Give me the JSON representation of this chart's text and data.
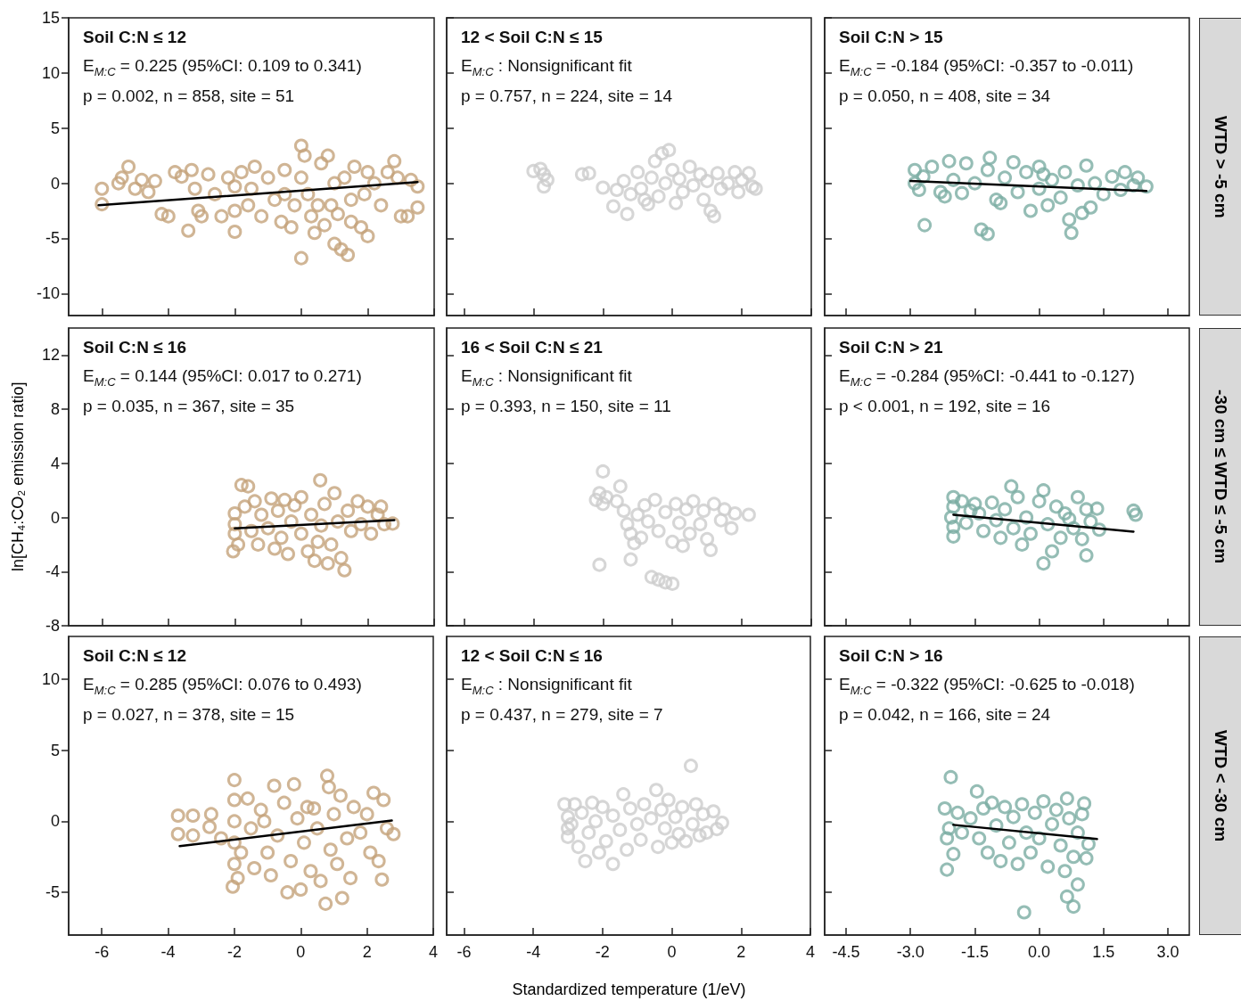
{
  "chart_data": [
    {
      "type": "scatter",
      "title": "Soil C:N ≤ 12",
      "annotations": [
        "E$_{M:C}$ = 0.225 (95%CI: 0.109 to 0.341)",
        "p = 0.002, n = 858, site = 51"
      ],
      "marker": "circle",
      "tick_labels": "y",
      "xlim": [
        -7,
        4
      ],
      "xticks": [
        -6,
        -4,
        -2,
        0,
        2,
        4
      ],
      "ylim": [
        -12,
        15
      ],
      "yticks": [
        -10,
        -5,
        0,
        5,
        10,
        15
      ],
      "series": [
        {
          "type": "scatter",
          "color": "#c4a27a",
          "x": [
            -6.0,
            -6.0,
            -5.5,
            -5.4,
            -5.2,
            -5.0,
            -4.8,
            -4.6,
            -4.4,
            -4.2,
            -4.0,
            -3.8,
            -3.6,
            -3.4,
            -3.3,
            -3.2,
            -3.1,
            -3.0,
            -2.8,
            -2.6,
            -2.4,
            -2.2,
            -2.0,
            -2.0,
            -2.0,
            -1.8,
            -1.6,
            -1.4,
            -1.2,
            -1.0,
            -0.8,
            -0.6,
            -0.5,
            -0.3,
            -0.2,
            0.0,
            0.0,
            0.0,
            0.1,
            0.2,
            0.3,
            0.4,
            0.6,
            0.8,
            0.9,
            1.0,
            1.2,
            1.4,
            1.3,
            1.5,
            1.6,
            1.8,
            1.9,
            2.0,
            2.2,
            2.4,
            2.6,
            2.8,
            2.9,
            3.0,
            3.2,
            3.3,
            3.5,
            3.5,
            -0.5,
            0.5,
            1.0,
            1.5,
            2.0,
            -1.5,
            0.7,
            1.1
          ],
          "values": [
            -0.5,
            -1.9,
            0.0,
            0.5,
            1.5,
            -0.5,
            0.3,
            -0.8,
            0.2,
            -2.8,
            -3.0,
            1.0,
            0.6,
            -4.3,
            1.2,
            -0.5,
            -2.5,
            -3.0,
            0.8,
            -1.0,
            -3.0,
            0.5,
            -0.3,
            -2.5,
            -4.4,
            1.0,
            -2.0,
            1.5,
            -3.0,
            0.5,
            -1.5,
            -3.5,
            1.2,
            -4.0,
            -2.0,
            -6.8,
            0.5,
            3.4,
            2.5,
            -1.0,
            -3.0,
            -4.5,
            1.8,
            2.5,
            -2.0,
            -5.5,
            -6.0,
            -6.5,
            0.5,
            -3.5,
            1.5,
            -4.0,
            -1.0,
            -4.8,
            0.0,
            -2.0,
            1.0,
            2.0,
            0.5,
            -3.0,
            -3.0,
            0.3,
            -0.3,
            -2.2,
            -1.0,
            -2.0,
            0.0,
            -1.5,
            1.0,
            -0.5,
            -3.8,
            -2.8
          ]
        },
        {
          "type": "line",
          "marker": "none",
          "color": "#000000",
          "x": [
            -6.1,
            3.5
          ],
          "values": [
            -2.0,
            0.1
          ]
        }
      ]
    },
    {
      "type": "scatter",
      "title": "12 < Soil C:N ≤ 15",
      "annotations": [
        "E$_{M:C}$ : Nonsignificant fit",
        "p = 0.757, n = 224, site = 14"
      ],
      "marker": "circle",
      "tick_labels": false,
      "xlim": [
        -6.5,
        4
      ],
      "xticks": [
        -6,
        -4,
        -2,
        0,
        2,
        4
      ],
      "ylim": [
        -12,
        15
      ],
      "yticks": [
        -10,
        -5,
        0,
        5,
        10,
        15
      ],
      "series": [
        {
          "type": "scatter",
          "color": "#cccccc",
          "x": [
            -4.0,
            -3.8,
            -3.7,
            -3.6,
            -3.7,
            -2.6,
            -2.4,
            -2.0,
            -1.7,
            -1.3,
            -1.4,
            -1.2,
            -1.0,
            -0.9,
            -0.8,
            -0.6,
            -0.5,
            -0.4,
            -0.3,
            -0.2,
            -0.1,
            0.0,
            0.1,
            0.2,
            0.3,
            0.5,
            0.6,
            0.8,
            0.9,
            1.0,
            1.1,
            1.2,
            1.3,
            1.4,
            1.6,
            1.8,
            1.9,
            2.0,
            2.2,
            2.3,
            2.4,
            -1.6,
            -0.7
          ],
          "values": [
            1.1,
            1.3,
            0.8,
            0.3,
            -0.3,
            0.8,
            0.9,
            -0.4,
            -2.1,
            -2.8,
            0.2,
            -1.0,
            1.0,
            -0.5,
            -1.5,
            0.5,
            2.0,
            -1.2,
            2.7,
            0.0,
            3.0,
            1.2,
            -1.8,
            0.4,
            -0.8,
            1.5,
            -0.2,
            0.8,
            -1.5,
            0.2,
            -2.5,
            -3.0,
            0.9,
            -0.5,
            0.0,
            1.0,
            -0.8,
            0.3,
            0.9,
            -0.3,
            -0.5,
            -0.6,
            -1.9
          ]
        }
      ]
    },
    {
      "type": "scatter",
      "title": "Soil C:N > 15",
      "annotations": [
        "E$_{M:C}$ = -0.184 (95%CI: -0.357 to -0.011)",
        "p = 0.050, n = 408, site = 34"
      ],
      "y2label": "WTD > -5 cm",
      "marker": "circle",
      "tick_labels": false,
      "xlim": [
        -5,
        3.5
      ],
      "xticks": [
        -4.5,
        -3,
        -1.5,
        0,
        1.5,
        3
      ],
      "ylim": [
        -12,
        15
      ],
      "yticks": [
        -10,
        -5,
        0,
        5,
        10,
        15
      ],
      "series": [
        {
          "type": "scatter",
          "color": "#7aaca2",
          "x": [
            -2.9,
            -2.9,
            -2.8,
            -2.7,
            -2.67,
            -2.5,
            -2.3,
            -2.1,
            -2.0,
            -1.8,
            -1.7,
            -1.5,
            -1.35,
            -1.2,
            -1.2,
            -1.15,
            -1.0,
            -0.8,
            -0.6,
            -0.5,
            -0.3,
            -0.2,
            0.0,
            0.0,
            0.2,
            0.3,
            0.5,
            0.6,
            0.7,
            0.75,
            0.9,
            1.0,
            1.1,
            1.2,
            1.3,
            1.5,
            1.7,
            1.9,
            2.0,
            2.2,
            2.3,
            2.5,
            -2.2,
            -0.9,
            0.1
          ],
          "values": [
            1.2,
            0.0,
            -0.6,
            0.6,
            -3.8,
            1.5,
            -0.8,
            2.0,
            0.3,
            -0.9,
            1.8,
            0.0,
            -4.2,
            -4.6,
            1.2,
            2.3,
            -1.5,
            0.5,
            1.9,
            -0.8,
            1.0,
            -2.5,
            -0.5,
            1.5,
            -2.0,
            0.3,
            -1.3,
            1.0,
            -3.3,
            -4.5,
            -0.2,
            -2.7,
            1.6,
            -2.2,
            0.0,
            -1.0,
            0.6,
            -0.6,
            1.0,
            -0.2,
            0.5,
            -0.3,
            -1.2,
            -1.8,
            0.8
          ]
        },
        {
          "type": "line",
          "marker": "none",
          "color": "#000000",
          "x": [
            -3.0,
            2.5
          ],
          "values": [
            0.2,
            -0.7
          ]
        }
      ]
    },
    {
      "type": "scatter",
      "title": "Soil C:N ≤ 16",
      "annotations": [
        "E$_{M:C}$ = 0.144 (95%CI: 0.017 to 0.271)",
        "p = 0.035, n = 367, site = 35"
      ],
      "ylabel": "ln[CH₄:CO₂ emission ratio]",
      "marker": "circle",
      "tick_labels": "y",
      "xlim": [
        -7,
        4
      ],
      "xticks": [
        -6,
        -4,
        -2,
        0,
        2,
        4
      ],
      "ylim": [
        -8,
        14
      ],
      "yticks": [
        -8,
        -4,
        0,
        4,
        8,
        12
      ],
      "series": [
        {
          "type": "scatter",
          "color": "#c4a27a",
          "x": [
            -2.0,
            -2.0,
            -2.0,
            -2.05,
            -1.9,
            -1.8,
            -1.6,
            -1.7,
            -1.5,
            -1.4,
            -1.3,
            -1.2,
            -1.0,
            -0.9,
            -0.8,
            -0.7,
            -0.6,
            -0.5,
            -0.4,
            -0.3,
            -0.2,
            0.0,
            0.0,
            0.2,
            0.3,
            0.4,
            0.5,
            0.57,
            0.6,
            0.7,
            0.8,
            0.9,
            1.0,
            1.1,
            1.2,
            1.3,
            1.4,
            1.5,
            1.7,
            1.8,
            2.0,
            2.1,
            2.3,
            2.4,
            2.5,
            2.75
          ],
          "values": [
            0.3,
            -0.5,
            -1.2,
            -2.5,
            -2.0,
            2.4,
            2.3,
            0.8,
            -1.0,
            1.2,
            -2.0,
            0.2,
            -0.8,
            1.4,
            -2.3,
            0.5,
            -1.5,
            1.3,
            -2.7,
            -0.3,
            0.9,
            -1.2,
            1.5,
            -2.5,
            0.2,
            -3.2,
            -1.8,
            2.75,
            -0.6,
            1.0,
            -3.4,
            -2.0,
            1.8,
            -0.3,
            -3.0,
            -3.9,
            0.5,
            -1.0,
            1.2,
            -0.5,
            0.8,
            -1.2,
            0.2,
            0.8,
            -0.5,
            -0.45
          ]
        },
        {
          "type": "line",
          "marker": "none",
          "color": "#000000",
          "x": [
            -2.0,
            2.8
          ],
          "values": [
            -0.8,
            -0.2
          ]
        }
      ]
    },
    {
      "type": "scatter",
      "title": "16 < Soil C:N ≤ 21",
      "annotations": [
        "E$_{M:C}$ : Nonsignificant fit",
        "p = 0.393, n = 150, site = 11"
      ],
      "marker": "circle",
      "tick_labels": false,
      "xlim": [
        -6.5,
        4
      ],
      "xticks": [
        -6,
        -4,
        -2,
        0,
        2,
        4
      ],
      "ylim": [
        -8,
        14
      ],
      "yticks": [
        -8,
        -4,
        0,
        4,
        8,
        12
      ],
      "series": [
        {
          "type": "scatter",
          "color": "#cccccc",
          "x": [
            -2.1,
            -2.2,
            -2.0,
            -1.9,
            -2.0,
            -1.6,
            -1.5,
            -1.4,
            -1.3,
            -1.2,
            -2.1,
            -1.2,
            -1.0,
            -0.9,
            -0.8,
            -0.7,
            -0.6,
            -0.4,
            -0.2,
            0.0,
            -0.5,
            -0.4,
            -0.2,
            0.0,
            0.1,
            0.2,
            0.3,
            0.4,
            0.5,
            0.6,
            0.8,
            0.9,
            1.0,
            1.1,
            1.2,
            1.4,
            1.5,
            1.7,
            1.8,
            2.2,
            -1.1
          ],
          "values": [
            1.8,
            1.3,
            1.0,
            1.5,
            3.4,
            1.2,
            2.3,
            0.5,
            -0.5,
            -3.1,
            -3.5,
            -1.2,
            0.2,
            -1.5,
            0.9,
            -0.3,
            -4.4,
            -4.6,
            -4.8,
            -4.9,
            1.3,
            -1.0,
            0.4,
            -1.8,
            1.0,
            -0.4,
            -2.1,
            0.6,
            -1.2,
            1.2,
            -0.5,
            0.5,
            -1.6,
            -2.4,
            1.0,
            -0.2,
            0.6,
            -0.8,
            0.3,
            0.2,
            -1.9
          ]
        }
      ]
    },
    {
      "type": "scatter",
      "title": "Soil C:N > 21",
      "annotations": [
        "E$_{M:C}$ = -0.284 (95%CI: -0.441 to -0.127)",
        "p < 0.001, n = 192, site = 16"
      ],
      "y2label": "-30 cm ≤ WTD ≤ -5 cm",
      "marker": "circle",
      "tick_labels": false,
      "xlim": [
        -5,
        3.5
      ],
      "xticks": [
        -4.5,
        -3,
        -1.5,
        0,
        1.5,
        3
      ],
      "ylim": [
        -8,
        14
      ],
      "yticks": [
        -8,
        -4,
        0,
        4,
        8,
        12
      ],
      "series": [
        {
          "type": "scatter",
          "color": "#7aaca2",
          "x": [
            -2.0,
            -2.0,
            -2.05,
            -2.0,
            -2.0,
            -1.8,
            -1.7,
            -1.5,
            -1.4,
            -1.3,
            -1.1,
            -1.0,
            -0.9,
            -0.8,
            -0.65,
            -0.6,
            -0.5,
            -0.4,
            -0.3,
            -0.2,
            0.0,
            0.1,
            0.1,
            0.2,
            0.3,
            0.4,
            0.5,
            0.6,
            0.8,
            0.9,
            1.0,
            1.1,
            1.1,
            1.2,
            1.35,
            1.4,
            2.2,
            2.25,
            -1.6,
            0.7
          ],
          "values": [
            1.5,
            0.8,
            0.0,
            -0.7,
            -1.4,
            1.2,
            -0.4,
            1.0,
            0.3,
            -1.0,
            1.1,
            -0.2,
            -1.5,
            0.6,
            2.3,
            -0.8,
            1.5,
            -2.0,
            0.0,
            -1.2,
            1.2,
            2.0,
            -3.4,
            -0.5,
            -2.5,
            0.8,
            -1.5,
            0.3,
            -0.8,
            1.5,
            -1.6,
            -2.8,
            0.6,
            -0.3,
            0.65,
            -0.9,
            0.5,
            0.2,
            0.5,
            -0.1
          ]
        },
        {
          "type": "line",
          "marker": "none",
          "color": "#000000",
          "x": [
            -2.0,
            2.2
          ],
          "values": [
            0.2,
            -1.05
          ]
        }
      ]
    },
    {
      "type": "scatter",
      "title": "Soil C:N ≤ 12",
      "annotations": [
        "E$_{M:C}$ = 0.285 (95%CI: 0.076 to 0.493)",
        "p = 0.027, n = 378, site = 15"
      ],
      "marker": "circle",
      "xlim": [
        -7,
        4
      ],
      "xticks": [
        -6,
        -4,
        -2,
        0,
        2,
        4
      ],
      "ylim": [
        -8,
        13
      ],
      "yticks": [
        -5,
        0,
        5,
        10
      ],
      "series": [
        {
          "type": "scatter",
          "color": "#c4a27a",
          "x": [
            -3.7,
            -3.7,
            -3.25,
            -3.25,
            -2.7,
            -2.75,
            -2.4,
            -2.0,
            -2.0,
            -2.0,
            -2.0,
            -2.0,
            -2.05,
            -1.9,
            -1.8,
            -1.6,
            -1.5,
            -1.4,
            -1.2,
            -1.0,
            -0.9,
            -0.8,
            -0.7,
            -0.5,
            -0.4,
            -0.3,
            -0.2,
            -0.1,
            0.0,
            0.1,
            0.2,
            0.3,
            0.5,
            0.6,
            0.75,
            0.8,
            0.85,
            0.9,
            1.0,
            1.1,
            1.2,
            1.25,
            1.4,
            1.5,
            1.6,
            1.8,
            2.0,
            2.1,
            2.2,
            2.35,
            2.45,
            2.5,
            2.6,
            2.8,
            0.4,
            -1.1
          ],
          "values": [
            0.4,
            -0.9,
            0.4,
            -1.0,
            0.5,
            -0.4,
            -1.2,
            2.9,
            1.5,
            0.0,
            -1.5,
            -3.0,
            -4.6,
            -4.0,
            -2.2,
            1.6,
            -0.5,
            -3.3,
            0.8,
            -2.2,
            -3.8,
            2.5,
            -1.0,
            1.3,
            -5.0,
            -2.8,
            2.6,
            0.2,
            -4.8,
            -1.5,
            1.0,
            -3.5,
            -0.5,
            -4.2,
            -5.8,
            3.2,
            2.4,
            -2.0,
            0.5,
            -3.0,
            1.8,
            -5.4,
            -1.2,
            -4.0,
            1.0,
            -0.8,
            0.5,
            -2.2,
            2.0,
            -2.8,
            -4.1,
            1.5,
            -0.5,
            -0.9,
            0.9,
            0.0
          ]
        },
        {
          "type": "line",
          "marker": "none",
          "color": "#000000",
          "x": [
            -3.65,
            2.75
          ],
          "values": [
            -1.75,
            0.05
          ]
        }
      ]
    },
    {
      "type": "scatter",
      "title": "12 < Soil C:N ≤ 16",
      "annotations": [
        "E$_{M:C}$ : Nonsignificant fit",
        "p = 0.437, n = 279, site = 7"
      ],
      "xlabel": "Standardized temperature (1/eV)",
      "marker": "circle",
      "tick_labels": "x",
      "xlim": [
        -6.5,
        4
      ],
      "xticks": [
        -6,
        -4,
        -2,
        0,
        2,
        4
      ],
      "ylim": [
        -8,
        13
      ],
      "yticks": [
        -5,
        0,
        5,
        10
      ],
      "series": [
        {
          "type": "scatter",
          "color": "#cccccc",
          "x": [
            -3.1,
            -3.0,
            -3.0,
            -3.0,
            -2.8,
            -2.7,
            -2.6,
            -2.5,
            -2.4,
            -2.3,
            -2.2,
            -2.1,
            -2.0,
            -1.9,
            -1.7,
            -1.7,
            -1.5,
            -1.4,
            -1.3,
            -1.2,
            -1.0,
            -0.9,
            -0.8,
            -0.6,
            -0.45,
            -0.4,
            -0.3,
            -0.2,
            -0.1,
            0.0,
            0.1,
            0.2,
            0.3,
            0.4,
            0.55,
            0.6,
            0.7,
            0.8,
            0.9,
            1.0,
            1.2,
            1.3,
            1.45,
            -2.9
          ],
          "values": [
            1.2,
            0.3,
            -0.5,
            -1.1,
            1.2,
            -1.8,
            0.6,
            -2.8,
            -0.8,
            1.3,
            0.0,
            -2.2,
            1.0,
            -1.4,
            -3.0,
            0.4,
            -0.6,
            1.9,
            -2.0,
            0.9,
            -0.2,
            -1.3,
            1.2,
            0.2,
            2.2,
            -1.8,
            0.8,
            -0.5,
            1.5,
            -1.5,
            0.3,
            -0.9,
            1.0,
            -1.4,
            3.9,
            -0.2,
            1.2,
            -1.0,
            0.5,
            -0.8,
            0.7,
            -0.55,
            -0.1,
            -0.2
          ]
        }
      ]
    },
    {
      "type": "scatter",
      "title": "Soil C:N > 16",
      "annotations": [
        "E$_{M:C}$ = -0.322 (95%CI: -0.625 to -0.018)",
        "p = 0.042, n = 166, site = 24"
      ],
      "y2label": "WTD < -30 cm",
      "marker": "circle",
      "tick_labels": "x",
      "xlim": [
        -5,
        3.5
      ],
      "xticks": [
        -4.5,
        {
          "value": -3,
          "label": "-3.0"
        },
        -1.5,
        {
          "value": 0,
          "label": "0.0"
        },
        1.5,
        {
          "value": 3,
          "label": "3.0"
        }
      ],
      "ylim": [
        -8,
        13
      ],
      "yticks": [
        -5,
        0,
        5,
        10
      ],
      "series": [
        {
          "type": "scatter",
          "color": "#7aaca2",
          "x": [
            -2.06,
            -2.2,
            -2.15,
            -2.1,
            -2.15,
            -2.0,
            -1.9,
            -1.8,
            -1.6,
            -1.45,
            -1.4,
            -1.3,
            -1.2,
            -1.1,
            -1.0,
            -0.9,
            -0.8,
            -0.7,
            -0.6,
            -0.5,
            -0.4,
            -0.35,
            -0.3,
            -0.2,
            -0.1,
            0.0,
            0.1,
            0.2,
            0.3,
            0.4,
            0.5,
            0.6,
            0.65,
            0.65,
            0.7,
            0.8,
            0.8,
            0.9,
            0.9,
            1.0,
            1.05,
            1.1,
            1.15
          ],
          "values": [
            3.1,
            0.9,
            -1.2,
            -0.5,
            -3.4,
            -2.3,
            0.6,
            -0.8,
            0.2,
            2.1,
            -1.2,
            0.9,
            -2.2,
            1.3,
            -0.3,
            -2.8,
            1.0,
            -1.5,
            0.3,
            -3.0,
            1.2,
            -6.4,
            -0.8,
            -2.2,
            0.6,
            -1.2,
            1.4,
            -3.2,
            -0.2,
            0.8,
            -1.7,
            -3.5,
            -5.3,
            1.6,
            0.2,
            -6.0,
            -2.5,
            -4.45,
            -0.8,
            0.5,
            1.25,
            -2.6,
            -1.6
          ]
        },
        {
          "type": "line",
          "marker": "none",
          "color": "#000000",
          "x": [
            -2.0,
            1.35
          ],
          "values": [
            -0.25,
            -1.25
          ]
        }
      ]
    }
  ]
}
